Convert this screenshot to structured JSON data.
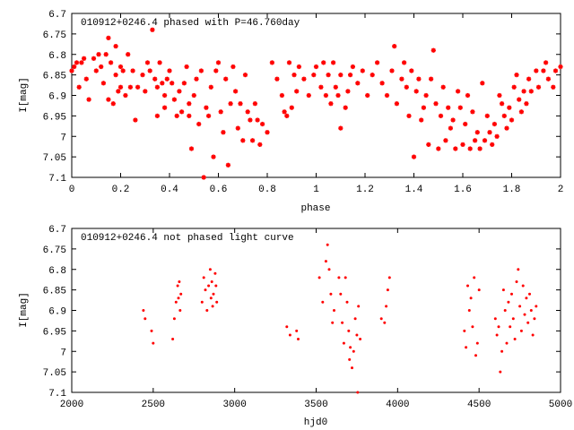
{
  "chart_data": [
    {
      "type": "scatter",
      "title": "010912+0246.4 phased with P=46.760day",
      "xlabel": "phase",
      "ylabel": "I[mag]",
      "xlim": [
        0,
        2
      ],
      "ylim": [
        7.1,
        6.7
      ],
      "y_inverted": true,
      "xticks": [
        "0",
        "0.2",
        "0.4",
        "0.6",
        "0.8",
        "1",
        "1.2",
        "1.4",
        "1.6",
        "1.8",
        "2"
      ],
      "yticks": [
        "6.7",
        "6.75",
        "6.8",
        "6.85",
        "6.9",
        "6.95",
        "7",
        "7.05",
        "7.1"
      ],
      "marker_color": "#ff0000",
      "marker": "star",
      "points": [
        [
          0.0,
          6.84
        ],
        [
          0.01,
          6.83
        ],
        [
          0.02,
          6.82
        ],
        [
          0.03,
          6.88
        ],
        [
          0.04,
          6.82
        ],
        [
          0.05,
          6.81
        ],
        [
          0.06,
          6.86
        ],
        [
          0.07,
          6.91
        ],
        [
          0.09,
          6.81
        ],
        [
          0.1,
          6.84
        ],
        [
          0.11,
          6.8
        ],
        [
          0.12,
          6.83
        ],
        [
          0.13,
          6.87
        ],
        [
          0.14,
          6.8
        ],
        [
          0.15,
          6.76
        ],
        [
          0.15,
          6.91
        ],
        [
          0.16,
          6.82
        ],
        [
          0.17,
          6.92
        ],
        [
          0.18,
          6.85
        ],
        [
          0.18,
          6.78
        ],
        [
          0.19,
          6.89
        ],
        [
          0.2,
          6.83
        ],
        [
          0.2,
          6.88
        ],
        [
          0.21,
          6.84
        ],
        [
          0.22,
          6.9
        ],
        [
          0.23,
          6.8
        ],
        [
          0.24,
          6.88
        ],
        [
          0.25,
          6.84
        ],
        [
          0.26,
          6.96
        ],
        [
          0.27,
          6.88
        ],
        [
          0.29,
          6.85
        ],
        [
          0.3,
          6.89
        ],
        [
          0.31,
          6.82
        ],
        [
          0.32,
          6.84
        ],
        [
          0.33,
          6.74
        ],
        [
          0.34,
          6.86
        ],
        [
          0.35,
          6.88
        ],
        [
          0.35,
          6.95
        ],
        [
          0.36,
          6.82
        ],
        [
          0.37,
          6.87
        ],
        [
          0.38,
          6.9
        ],
        [
          0.38,
          6.93
        ],
        [
          0.39,
          6.86
        ],
        [
          0.4,
          6.84
        ],
        [
          0.41,
          6.87
        ],
        [
          0.42,
          6.91
        ],
        [
          0.43,
          6.95
        ],
        [
          0.44,
          6.89
        ],
        [
          0.45,
          6.94
        ],
        [
          0.46,
          6.87
        ],
        [
          0.47,
          6.83
        ],
        [
          0.48,
          6.92
        ],
        [
          0.48,
          6.95
        ],
        [
          0.49,
          7.03
        ],
        [
          0.5,
          6.9
        ],
        [
          0.51,
          6.86
        ],
        [
          0.52,
          6.97
        ],
        [
          0.53,
          6.84
        ],
        [
          0.54,
          7.1
        ],
        [
          0.55,
          6.93
        ],
        [
          0.56,
          6.95
        ],
        [
          0.57,
          6.88
        ],
        [
          0.58,
          7.05
        ],
        [
          0.59,
          6.84
        ],
        [
          0.6,
          6.82
        ],
        [
          0.61,
          6.94
        ],
        [
          0.62,
          6.99
        ],
        [
          0.63,
          6.86
        ],
        [
          0.64,
          7.07
        ],
        [
          0.65,
          6.92
        ],
        [
          0.66,
          6.83
        ],
        [
          0.67,
          6.89
        ],
        [
          0.68,
          6.98
        ],
        [
          0.69,
          6.92
        ],
        [
          0.7,
          7.01
        ],
        [
          0.71,
          6.85
        ],
        [
          0.72,
          6.94
        ],
        [
          0.73,
          6.96
        ],
        [
          0.74,
          7.01
        ],
        [
          0.75,
          6.92
        ],
        [
          0.76,
          6.96
        ],
        [
          0.77,
          7.02
        ],
        [
          0.78,
          6.97
        ],
        [
          0.8,
          6.99
        ],
        [
          0.82,
          6.82
        ],
        [
          0.84,
          6.86
        ],
        [
          0.86,
          6.9
        ],
        [
          0.87,
          6.94
        ],
        [
          0.88,
          6.95
        ],
        [
          0.89,
          6.82
        ],
        [
          0.9,
          6.93
        ],
        [
          0.91,
          6.85
        ],
        [
          0.92,
          6.89
        ],
        [
          0.93,
          6.83
        ],
        [
          0.95,
          6.86
        ],
        [
          0.97,
          6.9
        ],
        [
          0.99,
          6.85
        ],
        [
          1.0,
          6.83
        ],
        [
          1.02,
          6.88
        ],
        [
          1.03,
          6.82
        ],
        [
          1.04,
          6.9
        ],
        [
          1.05,
          6.85
        ],
        [
          1.06,
          6.92
        ],
        [
          1.07,
          6.82
        ],
        [
          1.08,
          6.88
        ],
        [
          1.09,
          6.9
        ],
        [
          1.1,
          6.85
        ],
        [
          1.1,
          6.98
        ],
        [
          1.12,
          6.93
        ],
        [
          1.13,
          6.89
        ],
        [
          1.14,
          6.85
        ],
        [
          1.15,
          6.83
        ],
        [
          1.17,
          6.87
        ],
        [
          1.19,
          6.84
        ],
        [
          1.21,
          6.9
        ],
        [
          1.23,
          6.85
        ],
        [
          1.25,
          6.82
        ],
        [
          1.27,
          6.87
        ],
        [
          1.29,
          6.9
        ],
        [
          1.31,
          6.84
        ],
        [
          1.32,
          6.78
        ],
        [
          1.33,
          6.92
        ],
        [
          1.35,
          6.86
        ],
        [
          1.36,
          6.82
        ],
        [
          1.37,
          6.88
        ],
        [
          1.38,
          6.95
        ],
        [
          1.39,
          6.84
        ],
        [
          1.4,
          7.05
        ],
        [
          1.41,
          6.89
        ],
        [
          1.42,
          6.86
        ],
        [
          1.43,
          6.96
        ],
        [
          1.44,
          6.93
        ],
        [
          1.45,
          6.9
        ],
        [
          1.46,
          7.02
        ],
        [
          1.47,
          6.86
        ],
        [
          1.48,
          6.79
        ],
        [
          1.49,
          6.92
        ],
        [
          1.5,
          7.03
        ],
        [
          1.51,
          6.95
        ],
        [
          1.52,
          6.88
        ],
        [
          1.53,
          7.01
        ],
        [
          1.54,
          6.93
        ],
        [
          1.55,
          6.98
        ],
        [
          1.56,
          6.96
        ],
        [
          1.57,
          7.03
        ],
        [
          1.58,
          6.89
        ],
        [
          1.59,
          6.93
        ],
        [
          1.6,
          7.02
        ],
        [
          1.61,
          6.97
        ],
        [
          1.62,
          6.9
        ],
        [
          1.63,
          7.03
        ],
        [
          1.64,
          6.94
        ],
        [
          1.65,
          7.01
        ],
        [
          1.66,
          6.99
        ],
        [
          1.67,
          7.03
        ],
        [
          1.68,
          6.87
        ],
        [
          1.69,
          7.01
        ],
        [
          1.7,
          6.95
        ],
        [
          1.71,
          6.99
        ],
        [
          1.72,
          7.02
        ],
        [
          1.73,
          6.97
        ],
        [
          1.74,
          7.0
        ],
        [
          1.75,
          6.9
        ],
        [
          1.76,
          6.92
        ],
        [
          1.77,
          6.95
        ],
        [
          1.78,
          6.98
        ],
        [
          1.79,
          6.93
        ],
        [
          1.8,
          6.96
        ],
        [
          1.81,
          6.88
        ],
        [
          1.82,
          6.85
        ],
        [
          1.83,
          6.91
        ],
        [
          1.84,
          6.94
        ],
        [
          1.85,
          6.89
        ],
        [
          1.86,
          6.92
        ],
        [
          1.87,
          6.86
        ],
        [
          1.88,
          6.89
        ],
        [
          1.9,
          6.84
        ],
        [
          1.91,
          6.88
        ],
        [
          1.93,
          6.84
        ],
        [
          1.94,
          6.82
        ],
        [
          1.95,
          6.86
        ],
        [
          1.97,
          6.88
        ],
        [
          1.98,
          6.84
        ],
        [
          2.0,
          6.83
        ]
      ]
    },
    {
      "type": "scatter",
      "title": "010912+0246.4 not phased light curve",
      "xlabel": "hjd0",
      "ylabel": "I[mag]",
      "xlim": [
        2000,
        5000
      ],
      "ylim": [
        7.1,
        6.7
      ],
      "y_inverted": true,
      "xticks": [
        "2000",
        "2500",
        "3000",
        "3500",
        "4000",
        "4500",
        "5000"
      ],
      "yticks": [
        "6.7",
        "6.75",
        "6.8",
        "6.85",
        "6.9",
        "6.95",
        "7",
        "7.05",
        "7.1"
      ],
      "marker_color": "#ff0000",
      "marker": "dot",
      "points": [
        [
          2440,
          6.9
        ],
        [
          2450,
          6.92
        ],
        [
          2490,
          6.95
        ],
        [
          2500,
          6.98
        ],
        [
          2620,
          6.97
        ],
        [
          2630,
          6.92
        ],
        [
          2640,
          6.88
        ],
        [
          2650,
          6.84
        ],
        [
          2655,
          6.87
        ],
        [
          2660,
          6.83
        ],
        [
          2665,
          6.9
        ],
        [
          2670,
          6.86
        ],
        [
          2800,
          6.88
        ],
        [
          2810,
          6.82
        ],
        [
          2820,
          6.85
        ],
        [
          2830,
          6.9
        ],
        [
          2840,
          6.84
        ],
        [
          2850,
          6.8
        ],
        [
          2855,
          6.87
        ],
        [
          2860,
          6.83
        ],
        [
          2865,
          6.89
        ],
        [
          2870,
          6.86
        ],
        [
          2880,
          6.81
        ],
        [
          2885,
          6.84
        ],
        [
          2890,
          6.88
        ],
        [
          3320,
          6.94
        ],
        [
          3340,
          6.96
        ],
        [
          3380,
          6.95
        ],
        [
          3390,
          6.97
        ],
        [
          3520,
          6.82
        ],
        [
          3540,
          6.88
        ],
        [
          3560,
          6.78
        ],
        [
          3570,
          6.74
        ],
        [
          3580,
          6.8
        ],
        [
          3590,
          6.86
        ],
        [
          3600,
          6.93
        ],
        [
          3610,
          6.9
        ],
        [
          3640,
          6.82
        ],
        [
          3650,
          6.86
        ],
        [
          3660,
          6.93
        ],
        [
          3670,
          6.98
        ],
        [
          3680,
          6.82
        ],
        [
          3690,
          6.88
        ],
        [
          3700,
          6.95
        ],
        [
          3705,
          7.02
        ],
        [
          3710,
          6.99
        ],
        [
          3720,
          7.04
        ],
        [
          3730,
          7.0
        ],
        [
          3740,
          6.92
        ],
        [
          3750,
          6.96
        ],
        [
          3755,
          7.1
        ],
        [
          3760,
          6.89
        ],
        [
          3770,
          6.97
        ],
        [
          3900,
          6.92
        ],
        [
          3920,
          6.93
        ],
        [
          3930,
          6.89
        ],
        [
          3940,
          6.85
        ],
        [
          3950,
          6.82
        ],
        [
          4410,
          6.95
        ],
        [
          4420,
          6.99
        ],
        [
          4430,
          6.84
        ],
        [
          4440,
          6.9
        ],
        [
          4450,
          6.87
        ],
        [
          4460,
          6.94
        ],
        [
          4470,
          6.82
        ],
        [
          4480,
          7.01
        ],
        [
          4490,
          6.98
        ],
        [
          4500,
          6.85
        ],
        [
          4600,
          6.92
        ],
        [
          4610,
          6.96
        ],
        [
          4620,
          6.94
        ],
        [
          4630,
          7.05
        ],
        [
          4640,
          7.0
        ],
        [
          4650,
          6.85
        ],
        [
          4660,
          6.9
        ],
        [
          4670,
          6.98
        ],
        [
          4680,
          6.88
        ],
        [
          4690,
          6.94
        ],
        [
          4700,
          6.86
        ],
        [
          4710,
          6.92
        ],
        [
          4720,
          6.97
        ],
        [
          4730,
          6.83
        ],
        [
          4740,
          6.8
        ],
        [
          4750,
          6.89
        ],
        [
          4760,
          6.95
        ],
        [
          4770,
          6.84
        ],
        [
          4780,
          6.91
        ],
        [
          4790,
          6.87
        ],
        [
          4800,
          6.93
        ],
        [
          4810,
          6.86
        ],
        [
          4820,
          6.9
        ],
        [
          4830,
          6.96
        ],
        [
          4840,
          6.92
        ],
        [
          4850,
          6.89
        ]
      ]
    }
  ]
}
